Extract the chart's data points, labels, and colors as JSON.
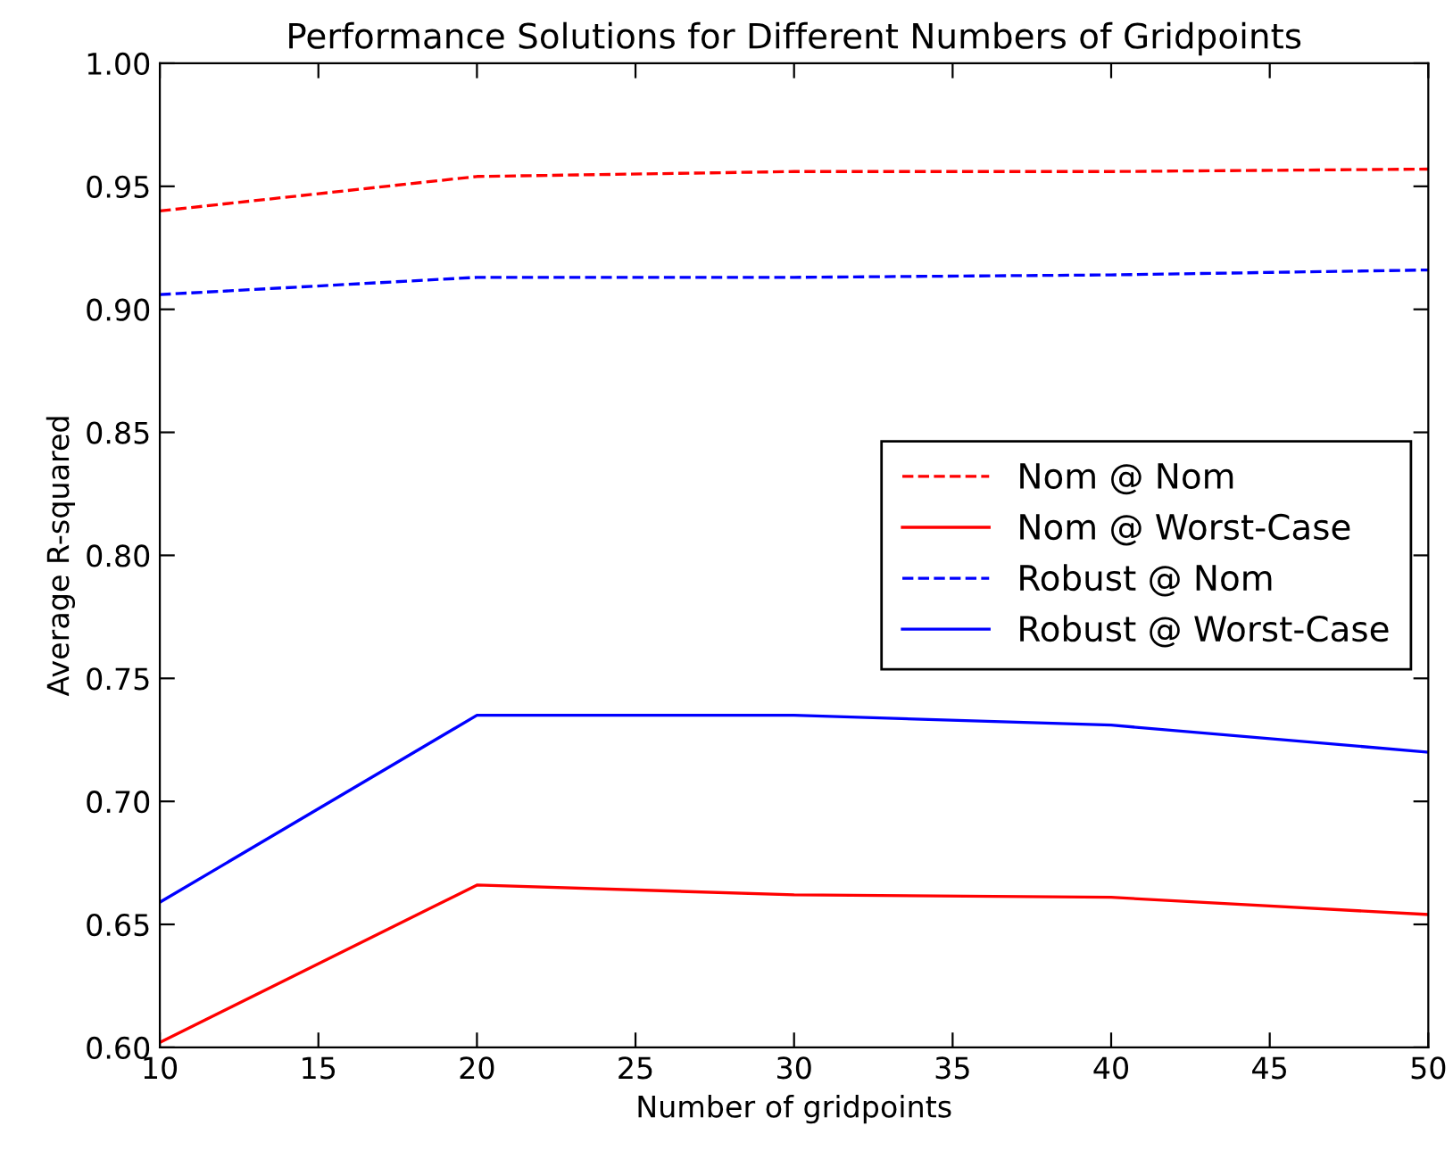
{
  "chart_data": {
    "type": "line",
    "title": "Performance Solutions for Different Numbers of Gridpoints",
    "xlabel": "Number of gridpoints",
    "ylabel": "Average R-squared",
    "x": [
      10,
      20,
      30,
      40,
      50
    ],
    "series": [
      {
        "name": "Nom @ Nom",
        "color": "#ff0000",
        "line_style": "dashed",
        "values": [
          0.94,
          0.954,
          0.956,
          0.956,
          0.957
        ]
      },
      {
        "name": "Nom @ Worst-Case",
        "color": "#ff0000",
        "line_style": "solid",
        "values": [
          0.602,
          0.666,
          0.662,
          0.661,
          0.654
        ]
      },
      {
        "name": "Robust @ Nom",
        "color": "#0000ff",
        "line_style": "dashed",
        "values": [
          0.906,
          0.913,
          0.913,
          0.914,
          0.916
        ]
      },
      {
        "name": "Robust @ Worst-Case",
        "color": "#0000ff",
        "line_style": "solid",
        "values": [
          0.659,
          0.735,
          0.735,
          0.731,
          0.72
        ]
      }
    ],
    "xlim": [
      10,
      50
    ],
    "xticks": [
      10,
      15,
      20,
      25,
      30,
      35,
      40,
      45,
      50
    ],
    "ylim": [
      0.6,
      1.0
    ],
    "yticks": [
      {
        "value": 0.6,
        "label": "0.60"
      },
      {
        "value": 0.65,
        "label": "0.65"
      },
      {
        "value": 0.7,
        "label": "0.70"
      },
      {
        "value": 0.75,
        "label": "0.75"
      },
      {
        "value": 0.8,
        "label": "0.80"
      },
      {
        "value": 0.85,
        "label": "0.85"
      },
      {
        "value": 0.9,
        "label": "0.90"
      },
      {
        "value": 0.95,
        "label": "0.95"
      },
      {
        "value": 1.0,
        "label": "1.00"
      }
    ],
    "grid": false,
    "legend": "center right",
    "marker": "none"
  }
}
